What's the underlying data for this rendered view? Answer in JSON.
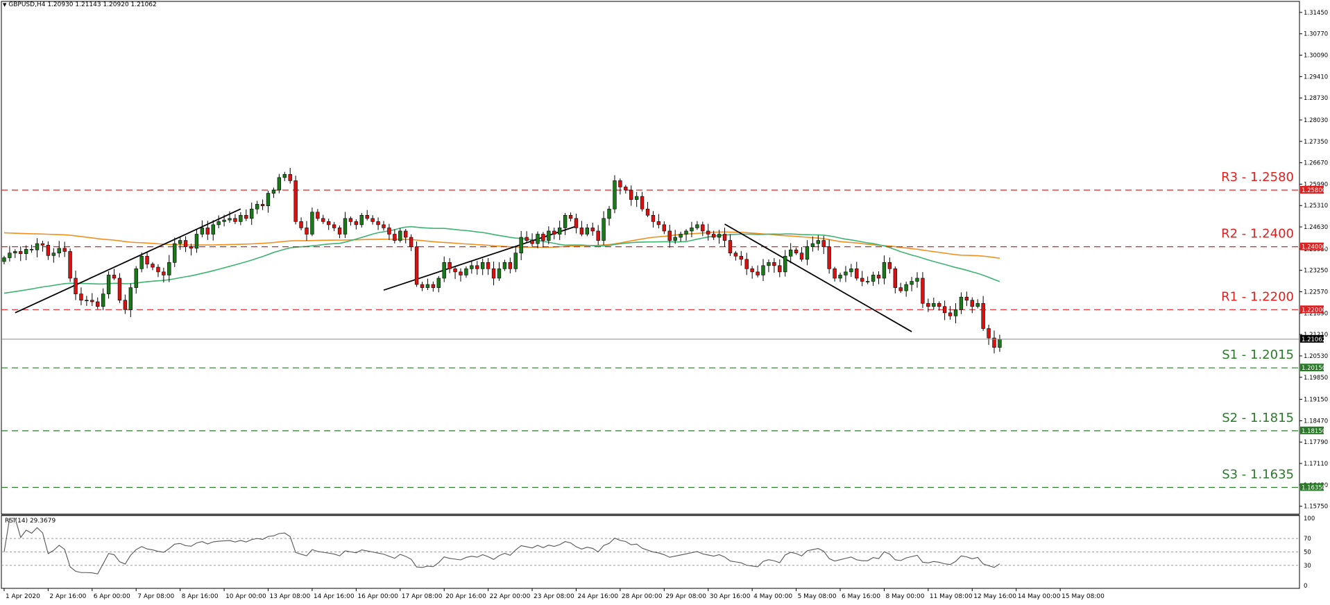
{
  "header": {
    "symbol": "GBPUSD,H4",
    "ohlc": "1.20930 1.21143 1.20920 1.21062"
  },
  "colors": {
    "background": "#ffffff",
    "frame": "#000000",
    "bull_candle": "#1a7a1a",
    "bear_candle": "#dd1010",
    "resistance": "#e02020",
    "support": "#2a7a2a",
    "ma_orange": "#f0901e",
    "ma_green": "#3cb371",
    "trendline": "#000000",
    "current_price_line": "#888888",
    "rsi_line": "#555555",
    "rsi_levels": "#999999"
  },
  "chart_data": {
    "type": "candlestick",
    "y_axis": {
      "ylim": [
        1.155,
        1.318
      ],
      "ticks": [
        "1.31450",
        "1.30770",
        "1.30090",
        "1.29410",
        "1.28730",
        "1.28030",
        "1.27350",
        "1.26670",
        "1.25990",
        "1.25310",
        "1.24630",
        "1.23930",
        "1.23250",
        "1.22570",
        "1.21890",
        "1.21210",
        "1.20530",
        "1.19850",
        "1.19150",
        "1.18470",
        "1.17790",
        "1.17110",
        "1.16430",
        "1.15750"
      ],
      "tick_values": [
        1.3145,
        1.3077,
        1.3009,
        1.2941,
        1.2873,
        1.2803,
        1.2735,
        1.2667,
        1.2599,
        1.2531,
        1.2463,
        1.2393,
        1.2325,
        1.2257,
        1.2189,
        1.2121,
        1.2053,
        1.1985,
        1.1915,
        1.1847,
        1.1779,
        1.1711,
        1.1643,
        1.1575
      ]
    },
    "x_axis": {
      "labels": [
        "1 Apr 2020",
        "2 Apr 16:00",
        "6 Apr 00:00",
        "7 Apr 08:00",
        "8 Apr 16:00",
        "10 Apr 00:00",
        "13 Apr 08:00",
        "14 Apr 16:00",
        "16 Apr 00:00",
        "17 Apr 08:00",
        "20 Apr 16:00",
        "22 Apr 00:00",
        "23 Apr 08:00",
        "24 Apr 16:00",
        "28 Apr 00:00",
        "29 Apr 08:00",
        "30 Apr 16:00",
        "4 May 00:00",
        "5 May 08:00",
        "6 May 16:00",
        "8 May 00:00",
        "11 May 08:00",
        "12 May 16:00",
        "14 May 00:00",
        "15 May 08:00"
      ],
      "label_bars": [
        0,
        8,
        16,
        24,
        32,
        40,
        48,
        56,
        64,
        72,
        80,
        88,
        96,
        104,
        112,
        120,
        128,
        136,
        144,
        152,
        160,
        168,
        176,
        184,
        192
      ],
      "total_slots": 236
    },
    "levels": [
      {
        "name": "R3 - 1.2580",
        "value": 1.258,
        "tag": "1.25800",
        "kind": "resistance"
      },
      {
        "name": "R2 - 1.2400",
        "value": 1.24,
        "tag": "1.24000",
        "kind": "resistance"
      },
      {
        "name": "R1 - 1.2200",
        "value": 1.22,
        "tag": "1.22000",
        "kind": "resistance"
      },
      {
        "name": "S1 - 1.2015",
        "value": 1.2015,
        "tag": "1.20150",
        "kind": "support"
      },
      {
        "name": "S2 - 1.1815",
        "value": 1.1815,
        "tag": "1.18150",
        "kind": "support"
      },
      {
        "name": "S3 - 1.1635",
        "value": 1.1635,
        "tag": "1.16350",
        "kind": "support"
      }
    ],
    "current_price": {
      "value": 1.21062,
      "tag": "1.21062"
    },
    "closes": [
      1.2365,
      1.238,
      1.2385,
      1.2378,
      1.2392,
      1.239,
      1.241,
      1.2405,
      1.2372,
      1.238,
      1.2395,
      1.2385,
      1.23,
      1.225,
      1.223,
      1.223,
      1.2225,
      1.221,
      1.225,
      1.231,
      1.23,
      1.223,
      1.22,
      1.227,
      1.233,
      1.237,
      1.2345,
      1.2335,
      1.232,
      1.231,
      1.235,
      1.241,
      1.242,
      1.24,
      1.2395,
      1.244,
      1.246,
      1.244,
      1.247,
      1.248,
      1.2485,
      1.249,
      1.248,
      1.25,
      1.249,
      1.252,
      1.2535,
      1.253,
      1.257,
      1.258,
      1.262,
      1.263,
      1.261,
      1.248,
      1.246,
      1.244,
      1.251,
      1.249,
      1.248,
      1.247,
      1.246,
      1.244,
      1.249,
      1.248,
      1.247,
      1.25,
      1.249,
      1.248,
      1.247,
      1.246,
      1.244,
      1.242,
      1.245,
      1.243,
      1.24,
      1.228,
      1.227,
      1.228,
      1.227,
      1.23,
      1.235,
      1.233,
      1.232,
      1.231,
      1.233,
      1.234,
      1.233,
      1.235,
      1.233,
      1.23,
      1.233,
      1.235,
      1.233,
      1.238,
      1.243,
      1.242,
      1.241,
      1.244,
      1.242,
      1.245,
      1.244,
      1.246,
      1.25,
      1.249,
      1.246,
      1.244,
      1.246,
      1.245,
      1.242,
      1.249,
      1.252,
      1.261,
      1.259,
      1.258,
      1.255,
      1.256,
      1.252,
      1.25,
      1.248,
      1.247,
      1.245,
      1.242,
      1.243,
      1.244,
      1.245,
      1.246,
      1.247,
      1.245,
      1.244,
      1.243,
      1.244,
      1.242,
      1.238,
      1.237,
      1.236,
      1.233,
      1.232,
      1.231,
      1.234,
      1.235,
      1.234,
      1.232,
      1.237,
      1.239,
      1.238,
      1.236,
      1.24,
      1.241,
      1.242,
      1.24,
      1.233,
      1.23,
      1.231,
      1.232,
      1.233,
      1.23,
      1.229,
      1.229,
      1.231,
      1.23,
      1.235,
      1.233,
      1.227,
      1.226,
      1.228,
      1.229,
      1.23,
      1.222,
      1.221,
      1.222,
      1.221,
      1.219,
      1.218,
      1.22,
      1.224,
      1.223,
      1.221,
      1.222,
      1.214,
      1.211,
      1.208,
      1.2106
    ]
  },
  "rsi": {
    "label": "RSI(14) 29.3679",
    "levels": [
      70,
      50,
      30
    ],
    "ticks": [
      "100",
      "70",
      "50",
      "30",
      "0"
    ],
    "tick_values": [
      100,
      70,
      50,
      30,
      0
    ]
  }
}
